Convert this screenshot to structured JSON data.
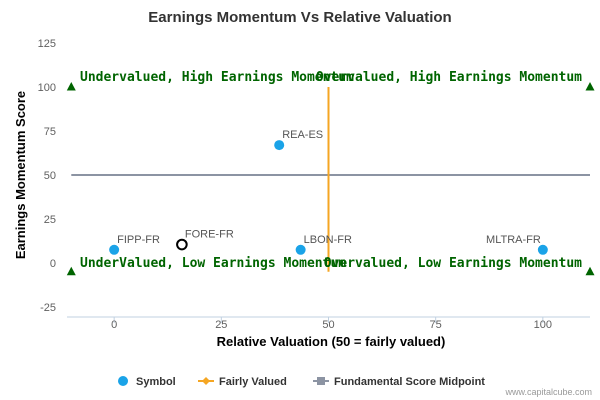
{
  "chart_data": {
    "type": "scatter",
    "title": "Earnings Momentum Vs Relative Valuation",
    "xlabel": "Relative Valuation (50 = fairly valued)",
    "ylabel": "Earnings Momentum Score",
    "xlim": [
      -11,
      111
    ],
    "ylim": [
      -25,
      125
    ],
    "xticks": [
      0,
      25,
      50,
      75,
      100
    ],
    "yticks": [
      -25,
      0,
      25,
      50,
      75,
      100,
      125
    ],
    "grid": false,
    "legend_position": "bottom",
    "series": [
      {
        "name": "Symbol",
        "color": "#1aa3e8",
        "points": [
          {
            "label": "REA-ES",
            "x": 38.5,
            "y": 67
          },
          {
            "label": "FIPP-FR",
            "x": 0,
            "y": 7.5
          },
          {
            "label": "FORE-FR",
            "x": 15.8,
            "y": 10.5,
            "highlight": true
          },
          {
            "label": "LBON-FR",
            "x": 43.5,
            "y": 7.5
          },
          {
            "label": "MLTRA-FR",
            "x": 100,
            "y": 7.5
          }
        ]
      },
      {
        "name": "Fairly Valued",
        "color": "#f5a623",
        "x": 50,
        "y_range": [
          -5,
          100
        ]
      },
      {
        "name": "Fundamental Score Midpoint",
        "color": "#8c94a3",
        "y": 50,
        "x_range": [
          -10,
          111
        ]
      }
    ],
    "quadrant_labels": {
      "top_left": "Undervalued, High Earnings Momentum",
      "top_right": "Overvalued, High Earnings Momentum",
      "bottom_left": "UnderValued, Low Earnings Momentum",
      "bottom_right": "Overvalued, Low Earnings Momentum"
    },
    "corner_markers": [
      {
        "x": -10,
        "y": 100
      },
      {
        "x": 111,
        "y": 100
      },
      {
        "x": -10,
        "y": -5
      },
      {
        "x": 111,
        "y": -5
      }
    ],
    "marker_color": "#006400",
    "credit": "www.capitalcube.com"
  }
}
